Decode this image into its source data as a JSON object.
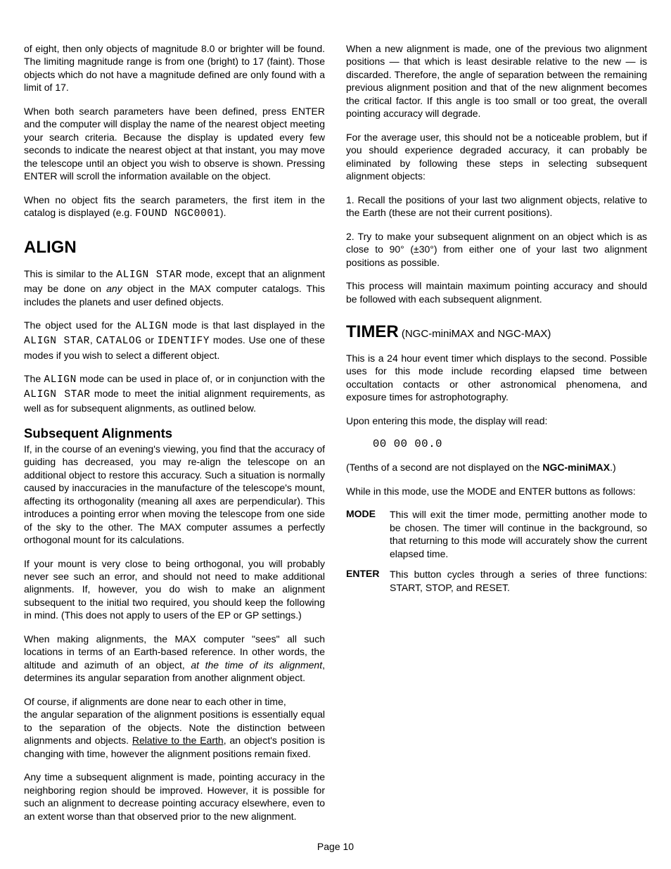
{
  "p1": "of eight, then only objects of magnitude 8.0 or brighter will be found.  The limiting magnitude range is from one (bright) to 17 (faint).  Those objects which do not have a magnitude defined are only found with a limit of 17.",
  "p2": "When both search parameters have been defined, press ENTER and the computer will display the name of the nearest object meeting your search criteria.  Because the display is updated every few seconds to indicate the nearest object at that instant, you may move the telescope until an object you wish to observe is shown.  Pressing ENTER will scroll the information available on the object.",
  "p3_a": "When no object fits the search parameters, the first item in the catalog is displayed (e.g. ",
  "p3_mono": "FOUND NGC0001",
  "p3_b": ").",
  "h_align": "ALIGN",
  "p4_a": "This is similar to the ",
  "p4_m1": "ALIGN STAR",
  "p4_b": " mode, except that an alignment may be done on ",
  "p4_i": "any",
  "p4_c": " object in the MAX computer catalogs.  This includes the planets and user defined objects.",
  "p5_a": "The object used for the ",
  "p5_m1": "ALIGN",
  "p5_b": " mode is that last displayed in the ",
  "p5_m2": "ALIGN STAR",
  "p5_c": ", ",
  "p5_m3": "CATALOG",
  "p5_d": " or ",
  "p5_m4": "IDENTIFY",
  "p5_e": " modes.  Use one of these modes if you wish to select a different object.",
  "p6_a": "The ",
  "p6_m1": "ALIGN",
  "p6_b": " mode can be used in place of, or in conjunction with the ",
  "p6_m2": "ALIGN STAR",
  "p6_c": " mode to meet the initial alignment requirements, as well as for subsequent alignments, as outlined below.",
  "h_sub": "Subsequent Alignments",
  "p7": "If, in the course of an evening's viewing, you find that the accuracy of guiding has decreased, you may re-align the telescope on an additional object to restore this accuracy.  Such a situation is normally caused by inaccuracies in the manufacture of the telescope's mount, affecting its orthogonality (meaning all axes are perpendicular).  This introduces a pointing error when moving the telescope from one side of the sky to the other.  The MAX computer assumes a perfectly orthogonal mount for its calculations.",
  "p8": "If your mount is very close to being orthogonal, you will probably never see such an error, and should not need to make additional alignments.  If, however, you do wish to make an alignment subsequent to the initial two required, you should keep the following in mind.  (This does not apply to users of the EP or GP settings.)",
  "p9_a": "When making alignments, the MAX computer \"sees\" all such locations in terms of an Earth-based reference.  In other words, the altitude and azimuth of an object, ",
  "p9_i": "at the time of its alignment",
  "p9_b": ", determines its angular separation from another alignment object.",
  "p10": "Of course, if alignments are done near to each other in time,",
  "p11_a": "the angular separation of the alignment positions is essentially equal to the separation of the objects.  Note the distinction between alignments and objects.  ",
  "p11_u": "Relative to the Earth",
  "p11_b": ", an object's position is changing with time, however the alignment positions remain fixed.",
  "p12": "Any time a subsequent alignment is made, pointing accuracy in the neighboring region should be improved.  However, it is possible for such an alignment to decrease pointing accuracy elsewhere, even to an extent worse than that observed prior to the new alignment.",
  "p13": "When a new alignment is made, one of the previous two alignment positions — that which is least desirable relative to the new — is discarded.  Therefore, the angle of separation between the remaining previous alignment position and that of the new alignment becomes the critical factor.  If this angle is too small or too great, the overall pointing accuracy will degrade.",
  "p14": "For the average user, this should not be a noticeable problem, but if you should experience degraded accuracy, it can probably be eliminated by following these steps in selecting subsequent alignment objects:",
  "p15": "1. Recall the positions of your last two alignment objects, relative to the Earth (these are not their current positions).",
  "p16": "2. Try to make your subsequent alignment on an object which is as close to 90° (±30°) from either one of your last two alignment positions as possible.",
  "p17": "This process will maintain maximum pointing accuracy and should be followed with each subsequent alignment.",
  "h_timer": "TIMER",
  "h_timer_sub": " (NGC-miniMAX and NGC-MAX)",
  "p18": "This is a 24 hour event timer which displays to the second.  Possible uses for this mode include recording elapsed time between occultation contacts or other astronomical phenomena, and exposure times for astrophotography.",
  "p19": "Upon entering this mode, the display will read:",
  "timer_display": "00 00 00.0",
  "p20_a": "(Tenths of a second are not displayed on the ",
  "p20_b": "NGC-miniMAX",
  "p20_c": ".)",
  "p21": "While in this mode, use the MODE and ENTER buttons as follows:",
  "mode_key": "MODE",
  "mode_val": "This will exit the timer mode, permitting another mode to be chosen.  The timer will continue in the background, so that returning to this mode will accurately show the current elapsed time.",
  "enter_key": "ENTER",
  "enter_val": "This button cycles through a series of three functions: START, STOP, and RESET.",
  "page_num": "Page 10"
}
